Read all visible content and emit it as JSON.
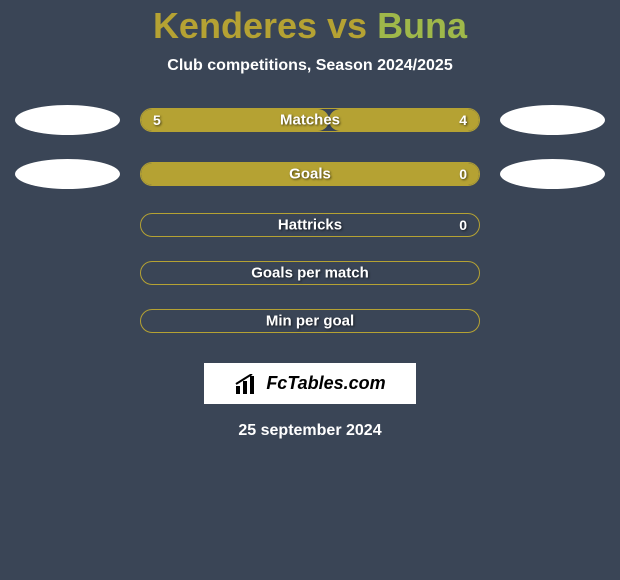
{
  "title": {
    "full": "Kenderes vs Buna",
    "team_a": "Kenderes",
    "team_b": "Buna",
    "vs": " vs ",
    "team_a_color": "#b5a233",
    "team_b_color": "#9fb84a",
    "fontsize": 36
  },
  "subtitle": "Club competitions, Season 2024/2025",
  "background_color": "#3a4556",
  "bar_color": "#b5a233",
  "text_color": "#ffffff",
  "stats": [
    {
      "label": "Matches",
      "left_value": "5",
      "right_value": "4",
      "left_fill_pct": 55.6,
      "right_fill_pct": 44.4,
      "show_ovals": true
    },
    {
      "label": "Goals",
      "left_value": "",
      "right_value": "0",
      "left_fill_pct": 100,
      "right_fill_pct": 0,
      "show_ovals": true
    },
    {
      "label": "Hattricks",
      "left_value": "",
      "right_value": "0",
      "left_fill_pct": 0,
      "right_fill_pct": 0,
      "show_ovals": false
    },
    {
      "label": "Goals per match",
      "left_value": "",
      "right_value": "",
      "left_fill_pct": 0,
      "right_fill_pct": 0,
      "show_ovals": false
    },
    {
      "label": "Min per goal",
      "left_value": "",
      "right_value": "",
      "left_fill_pct": 0,
      "right_fill_pct": 0,
      "show_ovals": false
    }
  ],
  "brand": "FcTables.com",
  "date": "25 september 2024"
}
